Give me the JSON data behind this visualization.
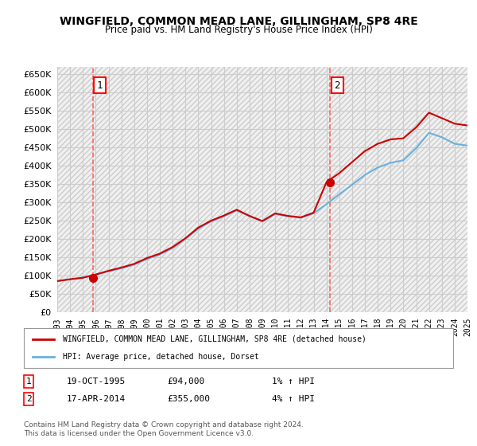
{
  "title": "WINGFIELD, COMMON MEAD LANE, GILLINGHAM, SP8 4RE",
  "subtitle": "Price paid vs. HM Land Registry's House Price Index (HPI)",
  "legend_line1": "WINGFIELD, COMMON MEAD LANE, GILLINGHAM, SP8 4RE (detached house)",
  "legend_line2": "HPI: Average price, detached house, Dorset",
  "footer": "Contains HM Land Registry data © Crown copyright and database right 2024.\nThis data is licensed under the Open Government Licence v3.0.",
  "annotation1_label": "1",
  "annotation1_date": "19-OCT-1995",
  "annotation1_price": "£94,000",
  "annotation1_hpi": "1% ↑ HPI",
  "annotation2_label": "2",
  "annotation2_date": "17-APR-2014",
  "annotation2_price": "£355,000",
  "annotation2_hpi": "4% ↑ HPI",
  "ylim": [
    0,
    670000
  ],
  "yticks": [
    0,
    50000,
    100000,
    150000,
    200000,
    250000,
    300000,
    350000,
    400000,
    450000,
    500000,
    550000,
    600000,
    650000
  ],
  "hpi_color": "#6ab0de",
  "price_color": "#cc0000",
  "sale1_x": 1995.8,
  "sale1_y": 94000,
  "sale2_x": 2014.3,
  "sale2_y": 355000,
  "hpi_years": [
    1993,
    1994,
    1995,
    1996,
    1997,
    1998,
    1999,
    2000,
    2001,
    2002,
    2003,
    2004,
    2005,
    2006,
    2007,
    2008,
    2009,
    2010,
    2011,
    2012,
    2013,
    2014,
    2015,
    2016,
    2017,
    2018,
    2019,
    2020,
    2021,
    2022,
    2023,
    2024,
    2025
  ],
  "hpi_values": [
    85000,
    90000,
    95000,
    102000,
    112000,
    120000,
    130000,
    145000,
    158000,
    175000,
    200000,
    228000,
    248000,
    262000,
    278000,
    262000,
    248000,
    268000,
    262000,
    258000,
    270000,
    295000,
    322000,
    348000,
    375000,
    395000,
    408000,
    415000,
    448000,
    490000,
    478000,
    460000,
    455000
  ],
  "price_years": [
    1993,
    1994,
    1995,
    1996,
    1997,
    1998,
    1999,
    2000,
    2001,
    2002,
    2003,
    2004,
    2005,
    2006,
    2007,
    2008,
    2009,
    2010,
    2011,
    2012,
    2013,
    2014,
    2015,
    2016,
    2017,
    2018,
    2019,
    2020,
    2021,
    2022,
    2023,
    2024,
    2025
  ],
  "price_values": [
    85000,
    90000,
    94000,
    103000,
    113000,
    122000,
    132000,
    148000,
    160000,
    178000,
    202000,
    231000,
    250000,
    264000,
    280000,
    263000,
    249000,
    270000,
    263000,
    259000,
    272000,
    355000,
    380000,
    410000,
    440000,
    460000,
    472000,
    475000,
    505000,
    545000,
    530000,
    515000,
    510000
  ],
  "xlim_start": 1993,
  "xlim_end": 2025,
  "xtick_years": [
    1993,
    1994,
    1995,
    1996,
    1997,
    1998,
    1999,
    2000,
    2001,
    2002,
    2003,
    2004,
    2005,
    2006,
    2007,
    2008,
    2009,
    2010,
    2011,
    2012,
    2013,
    2014,
    2015,
    2016,
    2017,
    2018,
    2019,
    2020,
    2021,
    2022,
    2023,
    2024,
    2025
  ],
  "background_hatch_color": "#e8e8e8",
  "grid_color": "#cccccc",
  "annotation_vline_color": "#ff6666"
}
